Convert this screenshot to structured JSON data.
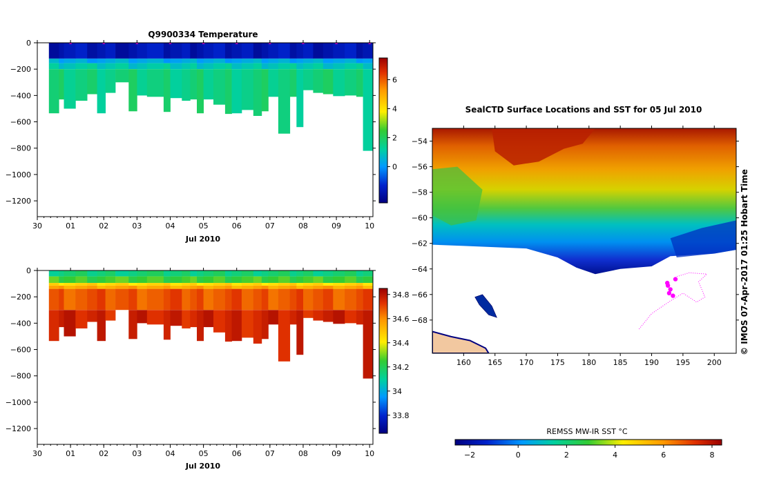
{
  "chart_data": [
    {
      "type": "heatmap",
      "title": "Q9900334  Temperature",
      "xlabel": "Jul 2010",
      "xlim": [
        30,
        40.1
      ],
      "x_tick_values": [
        30,
        31,
        32,
        33,
        34,
        35,
        36,
        37,
        38,
        39,
        40
      ],
      "x_tick_labels": [
        "30",
        "01",
        "02",
        "03",
        "04",
        "05",
        "06",
        "07",
        "08",
        "09",
        "10"
      ],
      "ylim": [
        -1320,
        0
      ],
      "y_tick_values": [
        0,
        -200,
        -400,
        -600,
        -800,
        -1000,
        -1200
      ],
      "y_tick_labels": [
        "0",
        "−200",
        "−400",
        "−600",
        "−800",
        "−1000",
        "−1200"
      ],
      "profile_markers_day": [
        31,
        32,
        33,
        34,
        35,
        36,
        37,
        38,
        39,
        40
      ],
      "colorbar": {
        "range": [
          -2.5,
          7.5
        ],
        "tick_values": [
          0,
          2,
          4,
          6
        ],
        "tick_labels": [
          "0",
          "2",
          "4",
          "6"
        ]
      },
      "layers_depth_m": [
        {
          "name": "surface",
          "top": 0,
          "bottom": -120,
          "value": -1.7
        },
        {
          "name": "thermocline-1",
          "top": -120,
          "bottom": -155,
          "value": 0.3
        },
        {
          "name": "thermocline-2",
          "top": -155,
          "bottom": -200,
          "value": 1.0
        },
        {
          "name": "deep",
          "top": -200,
          "bottom": "profile_max_depth",
          "value": 1.6
        }
      ],
      "profile_max_depth_m": [
        {
          "start": 30.35,
          "end": 30.65,
          "depth": -535
        },
        {
          "start": 30.65,
          "end": 30.8,
          "depth": -430
        },
        {
          "start": 30.8,
          "end": 31.15,
          "depth": -500
        },
        {
          "start": 31.15,
          "end": 31.5,
          "depth": -440
        },
        {
          "start": 31.5,
          "end": 31.8,
          "depth": -390
        },
        {
          "start": 31.8,
          "end": 32.05,
          "depth": -535
        },
        {
          "start": 32.05,
          "end": 32.35,
          "depth": -380
        },
        {
          "start": 32.35,
          "end": 32.75,
          "depth": -300
        },
        {
          "start": 32.75,
          "end": 33.0,
          "depth": -520
        },
        {
          "start": 33.0,
          "end": 33.3,
          "depth": -400
        },
        {
          "start": 33.3,
          "end": 33.8,
          "depth": -410
        },
        {
          "start": 33.8,
          "end": 34.0,
          "depth": -525
        },
        {
          "start": 34.0,
          "end": 34.35,
          "depth": -420
        },
        {
          "start": 34.35,
          "end": 34.6,
          "depth": -440
        },
        {
          "start": 34.6,
          "end": 34.8,
          "depth": -430
        },
        {
          "start": 34.8,
          "end": 35.0,
          "depth": -535
        },
        {
          "start": 35.0,
          "end": 35.3,
          "depth": -430
        },
        {
          "start": 35.3,
          "end": 35.65,
          "depth": -470
        },
        {
          "start": 35.65,
          "end": 35.85,
          "depth": -540
        },
        {
          "start": 35.85,
          "end": 36.15,
          "depth": -535
        },
        {
          "start": 36.15,
          "end": 36.5,
          "depth": -510
        },
        {
          "start": 36.5,
          "end": 36.75,
          "depth": -555
        },
        {
          "start": 36.75,
          "end": 36.95,
          "depth": -520
        },
        {
          "start": 36.95,
          "end": 37.25,
          "depth": -410
        },
        {
          "start": 37.25,
          "end": 37.6,
          "depth": -690
        },
        {
          "start": 37.6,
          "end": 37.8,
          "depth": -410
        },
        {
          "start": 37.8,
          "end": 38.0,
          "depth": -640
        },
        {
          "start": 38.0,
          "end": 38.3,
          "depth": -360
        },
        {
          "start": 38.3,
          "end": 38.6,
          "depth": -380
        },
        {
          "start": 38.6,
          "end": 38.9,
          "depth": -390
        },
        {
          "start": 38.9,
          "end": 39.25,
          "depth": -405
        },
        {
          "start": 39.25,
          "end": 39.6,
          "depth": -400
        },
        {
          "start": 39.6,
          "end": 39.8,
          "depth": -410
        },
        {
          "start": 39.8,
          "end": 40.1,
          "depth": -820
        }
      ]
    },
    {
      "type": "heatmap",
      "title": "",
      "xlabel": "Jul 2010",
      "xlim": [
        30,
        40.1
      ],
      "x_tick_values": [
        30,
        31,
        32,
        33,
        34,
        35,
        36,
        37,
        38,
        39,
        40
      ],
      "x_tick_labels": [
        "30",
        "01",
        "02",
        "03",
        "04",
        "05",
        "06",
        "07",
        "08",
        "09",
        "10"
      ],
      "ylim": [
        -1320,
        0
      ],
      "y_tick_values": [
        0,
        -200,
        -400,
        -600,
        -800,
        -1000,
        -1200
      ],
      "y_tick_labels": [
        "0",
        "−200",
        "−400",
        "−600",
        "−800",
        "−1000",
        "−1200"
      ],
      "colorbar": {
        "range": [
          33.65,
          34.85
        ],
        "tick_values": [
          33.8,
          34,
          34.2,
          34.4,
          34.6,
          34.8
        ],
        "tick_labels": [
          "33.8",
          "34",
          "34.2",
          "34.4",
          "34.6",
          "34.8"
        ]
      },
      "layers_depth_m": [
        {
          "name": "surface",
          "top": 0,
          "bottom": -45,
          "value": 34.15
        },
        {
          "name": "mixed",
          "top": -45,
          "bottom": -95,
          "value": 34.25
        },
        {
          "name": "halocline",
          "top": -95,
          "bottom": -115,
          "value": 34.45
        },
        {
          "name": "halocline-2",
          "top": -115,
          "bottom": -140,
          "value": 34.55
        },
        {
          "name": "upper-deep",
          "top": -140,
          "bottom": -300,
          "value": 34.68
        },
        {
          "name": "lower-deep",
          "top": -300,
          "bottom": "profile_max_depth",
          "value": 34.76
        }
      ],
      "profile_max_depth_m": "same as temperature section"
    },
    {
      "type": "heatmap",
      "title": "SealCTD Surface Locations and SST for 05 Jul 2010",
      "xlabel": "",
      "ylabel": "",
      "xlim": [
        155,
        203.5
      ],
      "ylim": [
        -70.6,
        -53
      ],
      "x_tick_values": [
        160,
        165,
        170,
        175,
        180,
        185,
        190,
        195,
        200
      ],
      "x_tick_labels": [
        "160",
        "165",
        "170",
        "175",
        "180",
        "185",
        "190",
        "195",
        "200"
      ],
      "y_tick_values": [
        -54,
        -56,
        -58,
        -60,
        -62,
        -64,
        -66,
        -68
      ],
      "y_tick_labels": [
        "−54",
        "−56",
        "−58",
        "−60",
        "−62",
        "−64",
        "−66",
        "−68"
      ],
      "sst_warm_band_C": {
        "north": 7,
        "mid": 4.5,
        "south_front": 1,
        "near_ice": -1
      },
      "ice_edge_lat_by_lon": [
        [
          155,
          -62.1
        ],
        [
          160,
          -62.2
        ],
        [
          165,
          -62.3
        ],
        [
          170,
          -62.4
        ],
        [
          175,
          -63.1
        ],
        [
          178,
          -63.9
        ],
        [
          181,
          -64.4
        ],
        [
          185,
          -64.0
        ],
        [
          190,
          -63.8
        ],
        [
          193,
          -63.0
        ],
        [
          200,
          -62.8
        ],
        [
          203.5,
          -62.5
        ]
      ],
      "land": "Antarctic coast, lower-left corner",
      "seal_track": {
        "color": "#ff00ff",
        "surface_locations": [
          [
            192.6,
            -65.3
          ],
          [
            193.0,
            -65.6
          ],
          [
            192.8,
            -65.9
          ],
          [
            193.4,
            -66.1
          ],
          [
            192.5,
            -65.1
          ],
          [
            193.8,
            -64.8
          ]
        ],
        "track_path": [
          [
            188,
            -68.7
          ],
          [
            190,
            -67.5
          ],
          [
            191.5,
            -67.0
          ],
          [
            193,
            -66.5
          ],
          [
            195,
            -65.9
          ],
          [
            197.2,
            -66.6
          ],
          [
            198.5,
            -66.2
          ],
          [
            197.5,
            -65.0
          ],
          [
            198.8,
            -64.4
          ],
          [
            196,
            -64.3
          ],
          [
            194,
            -64.6
          ]
        ]
      }
    }
  ],
  "colorbar_sst": {
    "label": "REMSS MW-IR SST °C",
    "range": [
      -2.6,
      8.4
    ],
    "tick_values": [
      -2,
      0,
      2,
      4,
      6,
      8
    ],
    "tick_labels": [
      "−2",
      "0",
      "2",
      "4",
      "6",
      "8"
    ]
  },
  "credit": "©  IMOS 07-Apr-2017 01:25 Hobart Time"
}
